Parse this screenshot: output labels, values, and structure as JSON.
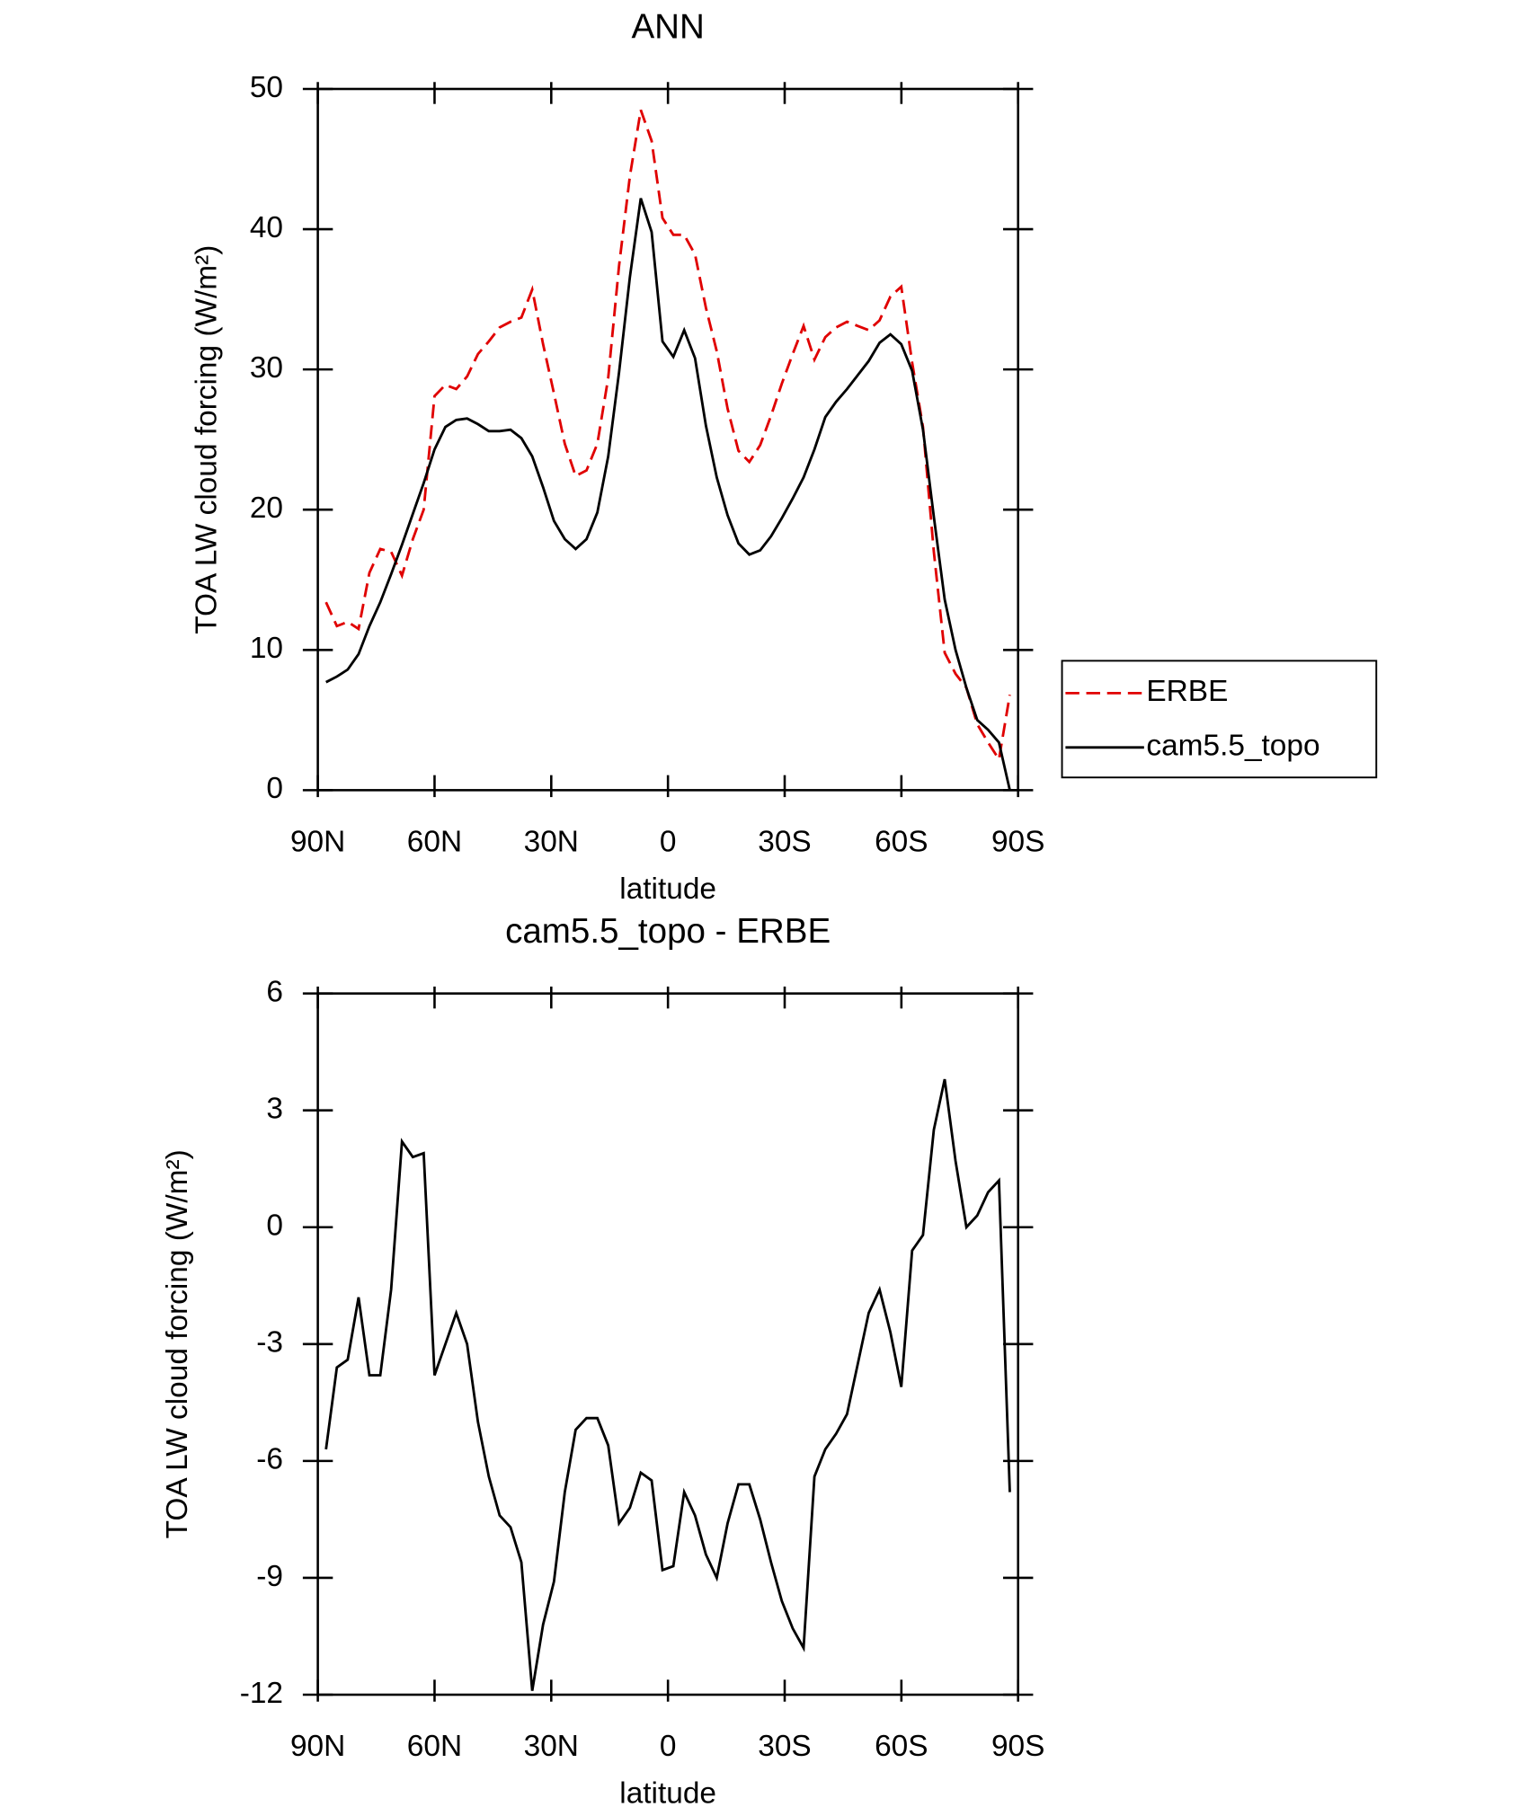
{
  "chart_data": [
    {
      "type": "line",
      "title": "ANN",
      "xlabel": "latitude",
      "ylabel": "TOA LW cloud forcing (W/m²)",
      "x": [
        87.9,
        85.11,
        82.32,
        79.53,
        76.74,
        73.95,
        71.16,
        68.37,
        65.58,
        62.79,
        60.0,
        57.21,
        54.42,
        51.63,
        48.84,
        46.05,
        43.26,
        40.47,
        37.68,
        34.89,
        32.1,
        29.31,
        26.52,
        23.73,
        20.94,
        18.15,
        15.36,
        12.57,
        9.78,
        6.99,
        4.2,
        1.41,
        -1.38,
        -4.17,
        -6.96,
        -9.75,
        -12.54,
        -15.33,
        -18.12,
        -20.91,
        -23.7,
        -26.49,
        -29.28,
        -32.07,
        -34.86,
        -37.65,
        -40.44,
        -43.23,
        -46.02,
        -48.81,
        -51.6,
        -54.39,
        -57.18,
        -59.97,
        -62.76,
        -65.55,
        -68.34,
        -71.13,
        -73.92,
        -76.71,
        -79.5,
        -82.29,
        -85.08,
        -87.87
      ],
      "series": [
        {
          "name": "ERBE",
          "color": "#e00000",
          "style": "dashed",
          "values": [
            13.4,
            11.7,
            12.0,
            11.5,
            15.5,
            17.2,
            17.0,
            15.3,
            17.9,
            20.0,
            28.1,
            28.9,
            28.6,
            29.5,
            31.1,
            32.0,
            33.0,
            33.4,
            33.7,
            35.7,
            31.8,
            28.3,
            24.7,
            22.4,
            22.8,
            24.7,
            29.4,
            37.4,
            43.8,
            48.5,
            46.3,
            40.8,
            39.6,
            39.6,
            38.2,
            34.4,
            31.3,
            27.2,
            24.2,
            23.4,
            24.6,
            26.7,
            29.0,
            31.1,
            33.1,
            30.7,
            32.3,
            33.0,
            33.4,
            33.1,
            32.8,
            33.5,
            35.2,
            35.9,
            30.5,
            25.9,
            17.0,
            9.8,
            8.3,
            7.3,
            4.7,
            3.4,
            2.2,
            6.8
          ]
        },
        {
          "name": "cam5.5_topo",
          "color": "#000000",
          "style": "solid",
          "values": [
            7.7,
            8.1,
            8.6,
            9.7,
            11.7,
            13.4,
            15.4,
            17.5,
            19.7,
            21.9,
            24.3,
            25.9,
            26.4,
            26.5,
            26.1,
            25.6,
            25.6,
            25.7,
            25.1,
            23.8,
            21.6,
            19.2,
            17.9,
            17.2,
            17.9,
            19.8,
            23.8,
            29.8,
            36.6,
            42.2,
            39.8,
            32.0,
            30.9,
            32.8,
            30.8,
            26.0,
            22.3,
            19.6,
            17.6,
            16.8,
            17.1,
            18.1,
            19.4,
            20.8,
            22.3,
            24.3,
            26.6,
            27.7,
            28.6,
            29.6,
            30.6,
            31.9,
            32.5,
            31.8,
            29.9,
            25.7,
            19.5,
            13.6,
            10.0,
            7.3,
            5.0,
            4.3,
            3.4,
            0.0
          ]
        }
      ],
      "xlim": [
        90,
        -90
      ],
      "xticks": [
        {
          "value": 90,
          "label": "90N"
        },
        {
          "value": 60,
          "label": "60N"
        },
        {
          "value": 30,
          "label": "30N"
        },
        0,
        {
          "value": -30,
          "label": "30S"
        },
        {
          "value": -60,
          "label": "60S"
        },
        {
          "value": -90,
          "label": "90S"
        }
      ],
      "ylim": [
        0,
        50
      ],
      "yticks": [
        0,
        10,
        20,
        30,
        40,
        50
      ],
      "legend": "right"
    },
    {
      "type": "line",
      "title": "cam5.5_topo - ERBE",
      "xlabel": "latitude",
      "ylabel": "TOA LW cloud forcing (W/m²)",
      "x": [
        87.9,
        85.11,
        82.32,
        79.53,
        76.74,
        73.95,
        71.16,
        68.37,
        65.58,
        62.79,
        60.0,
        57.21,
        54.42,
        51.63,
        48.84,
        46.05,
        43.26,
        40.47,
        37.68,
        34.89,
        32.1,
        29.31,
        26.52,
        23.73,
        20.94,
        18.15,
        15.36,
        12.57,
        9.78,
        6.99,
        4.2,
        1.41,
        -1.38,
        -4.17,
        -6.96,
        -9.75,
        -12.54,
        -15.33,
        -18.12,
        -20.91,
        -23.7,
        -26.49,
        -29.28,
        -32.07,
        -34.86,
        -37.65,
        -40.44,
        -43.23,
        -46.02,
        -48.81,
        -51.6,
        -54.39,
        -57.18,
        -59.97,
        -62.76,
        -65.55,
        -68.34,
        -71.13,
        -73.92,
        -76.71,
        -79.5,
        -82.29,
        -85.08,
        -87.87
      ],
      "values": [
        -5.7,
        -3.6,
        -3.4,
        -1.8,
        -3.8,
        -3.8,
        -1.6,
        2.2,
        1.8,
        1.9,
        -3.8,
        -3.0,
        -2.2,
        -3.0,
        -5.0,
        -6.4,
        -7.4,
        -7.7,
        -8.6,
        -11.9,
        -10.2,
        -9.1,
        -6.8,
        -5.2,
        -4.9,
        -4.9,
        -5.6,
        -7.6,
        -7.2,
        -6.3,
        -6.5,
        -8.8,
        -8.7,
        -6.8,
        -7.4,
        -8.4,
        -9.0,
        -7.6,
        -6.6,
        -6.6,
        -7.5,
        -8.6,
        -9.6,
        -10.3,
        -10.8,
        -6.4,
        -5.7,
        -5.3,
        -4.8,
        -3.5,
        -2.2,
        -1.6,
        -2.7,
        -4.1,
        -0.6,
        -0.2,
        2.5,
        3.8,
        1.7,
        0.0,
        0.3,
        0.9,
        1.2,
        -6.8
      ],
      "color": "#000000",
      "xlim": [
        90,
        -90
      ],
      "xticks": [
        {
          "value": 90,
          "label": "90N"
        },
        {
          "value": 60,
          "label": "60N"
        },
        {
          "value": 30,
          "label": "30N"
        },
        0,
        {
          "value": -30,
          "label": "30S"
        },
        {
          "value": -60,
          "label": "60S"
        },
        {
          "value": -90,
          "label": "90S"
        }
      ],
      "ylim": [
        -12,
        6
      ],
      "yticks": [
        -12,
        -9,
        -6,
        -3,
        0,
        3,
        6
      ]
    }
  ]
}
